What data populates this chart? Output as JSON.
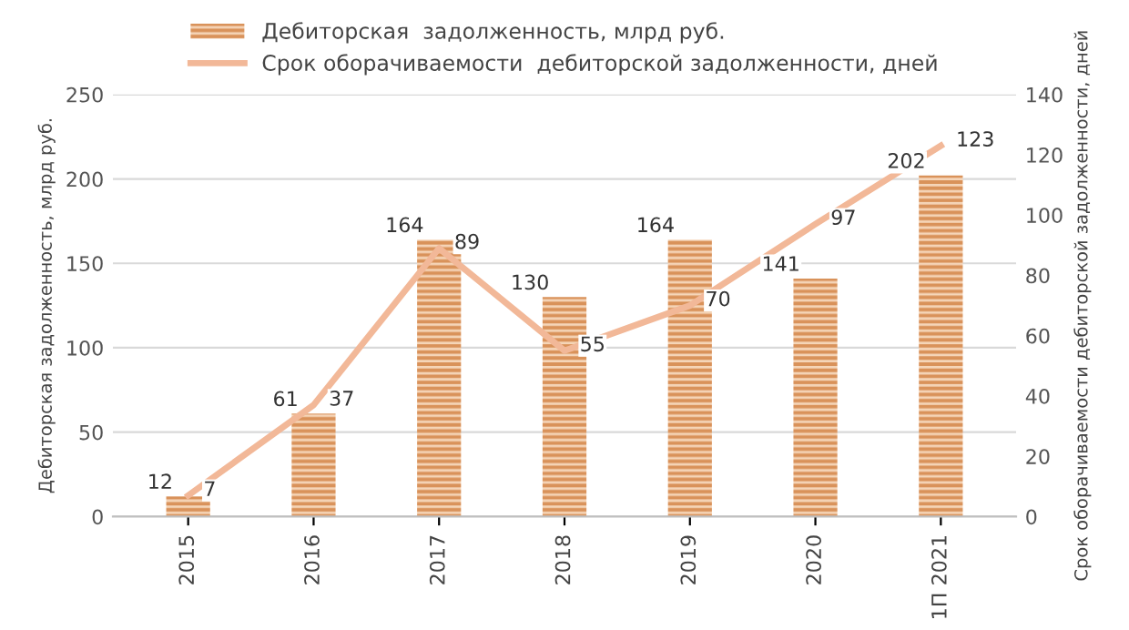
{
  "chart_data": {
    "type": "bar",
    "categories": [
      "2015",
      "2016",
      "2017",
      "2018",
      "2019",
      "2020",
      "1П 2021"
    ],
    "ylabel": "Дебиторская задолженность, млрд руб.",
    "y2label": "Срок оборачиваемости дебиторской задолженности, дней",
    "series": [
      {
        "name": "Дебиторская  задолженность, млрд руб.",
        "color": "#d9925a",
        "values": [
          12,
          61,
          164,
          130,
          164,
          141,
          202
        ]
      },
      {
        "name": "Срок оборачиваемости  дебиторской задолженности, дней",
        "type": "line",
        "axis": "y2",
        "color": "#f2b898",
        "values": [
          7,
          37,
          89,
          55,
          70,
          97,
          123
        ]
      }
    ],
    "ylim": [
      0,
      250
    ],
    "yticks": [
      0,
      50,
      100,
      150,
      200,
      250
    ],
    "y2lim": [
      0,
      140
    ],
    "y2ticks": [
      0,
      20,
      40,
      60,
      80,
      100,
      120,
      140
    ],
    "data_labels": true,
    "grid": "y",
    "legend": "top",
    "marker": "none",
    "line_style": "solid"
  }
}
